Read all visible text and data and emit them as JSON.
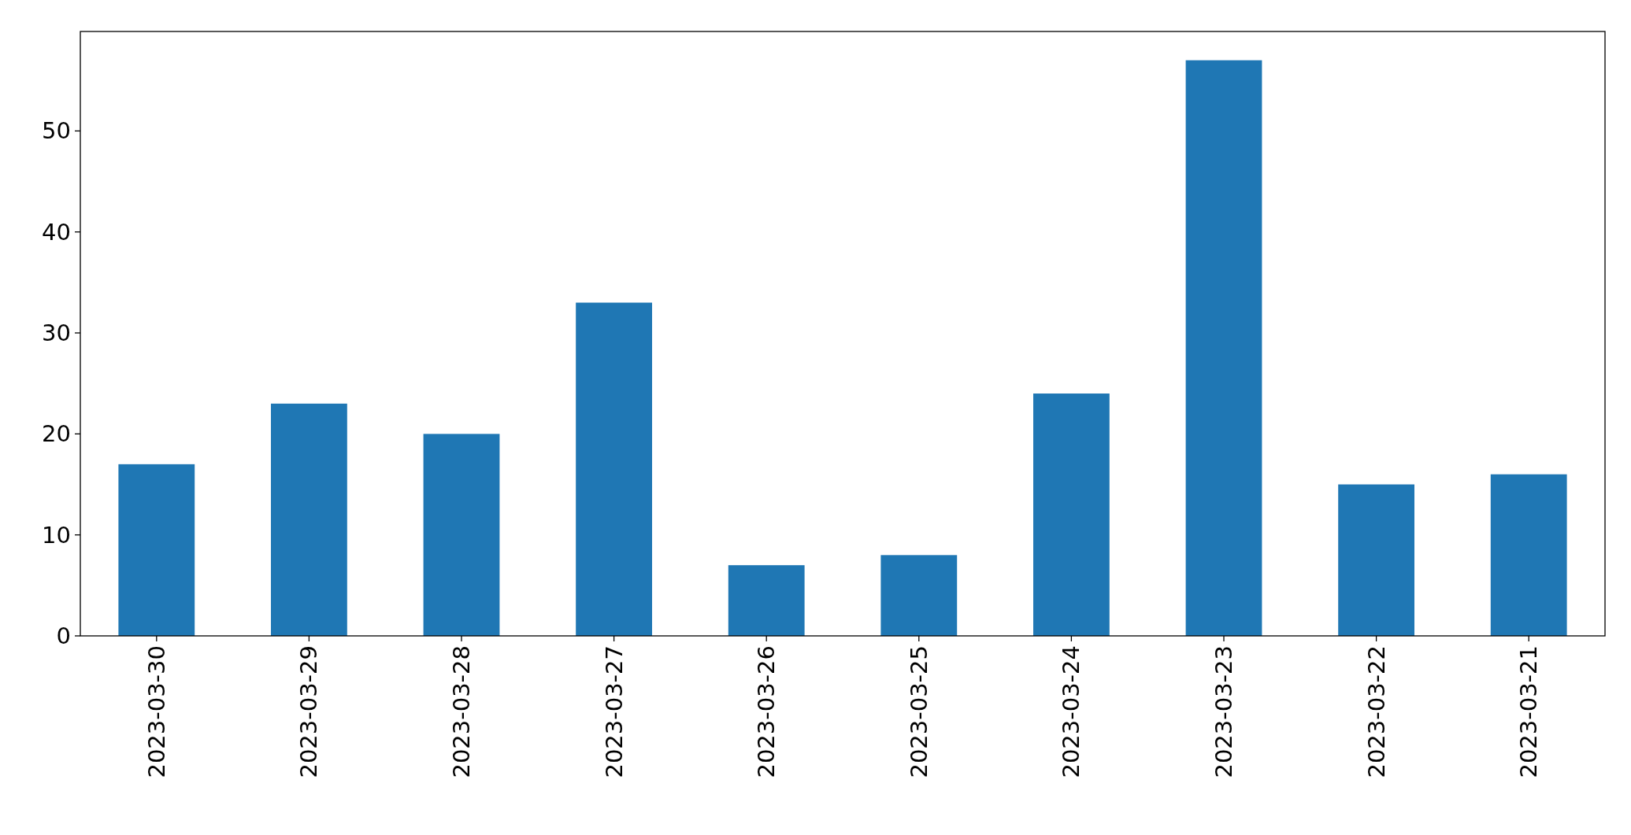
{
  "chart_data": {
    "type": "bar",
    "categories": [
      "2023-03-30",
      "2023-03-29",
      "2023-03-28",
      "2023-03-27",
      "2023-03-26",
      "2023-03-25",
      "2023-03-24",
      "2023-03-23",
      "2023-03-22",
      "2023-03-21"
    ],
    "values": [
      17,
      23,
      20,
      33,
      7,
      8,
      24,
      57,
      15,
      16
    ],
    "color": "#1f77b4",
    "ylim": [
      0,
      59.85
    ],
    "yticks": [
      0,
      10,
      20,
      30,
      40,
      50
    ],
    "grid": false
  }
}
